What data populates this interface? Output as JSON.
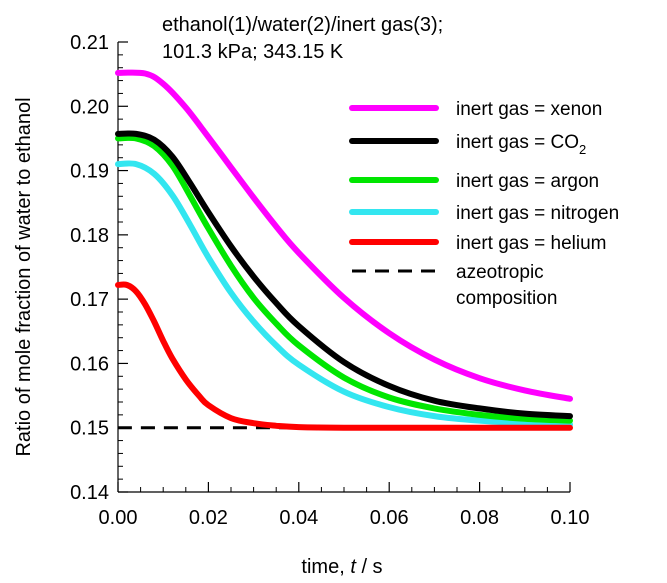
{
  "chart_data": {
    "type": "line",
    "title": "ethanol(1)/water(2)/inert gas(3);",
    "subtitle": "101.3 kPa; 343.15 K",
    "xlabel": {
      "prefix": "time, ",
      "var": "t",
      "suffix": " / s"
    },
    "ylabel": "Ratio of mole fraction of water to ethanol",
    "xlim": [
      0,
      0.1
    ],
    "ylim": [
      0.14,
      0.21
    ],
    "xticks": [
      "0.00",
      "0.02",
      "0.04",
      "0.06",
      "0.08",
      "0.10"
    ],
    "yticks": [
      "0.14",
      "0.15",
      "0.16",
      "0.17",
      "0.18",
      "0.19",
      "0.20",
      "0.21"
    ],
    "grid": false,
    "legend_position": "right",
    "series": [
      {
        "name": "inert gas = xenon",
        "color": "#ff00ff",
        "style": "solid",
        "x": [
          0,
          0.006,
          0.01,
          0.015,
          0.02,
          0.025,
          0.03,
          0.035,
          0.04,
          0.05,
          0.06,
          0.07,
          0.08,
          0.09,
          0.1
        ],
        "y": [
          0.2052,
          0.2051,
          0.2035,
          0.1998,
          0.1952,
          0.1905,
          0.1858,
          0.1813,
          0.1772,
          0.1702,
          0.1647,
          0.1606,
          0.1577,
          0.1558,
          0.1545
        ]
      },
      {
        "name": "inert gas = CO",
        "name_sub": "2",
        "color": "#000000",
        "style": "solid",
        "x": [
          0,
          0.004,
          0.008,
          0.012,
          0.016,
          0.02,
          0.025,
          0.03,
          0.035,
          0.04,
          0.05,
          0.06,
          0.07,
          0.08,
          0.09,
          0.1
        ],
        "y": [
          0.1957,
          0.1957,
          0.1948,
          0.1922,
          0.188,
          0.1835,
          0.1782,
          0.1735,
          0.1694,
          0.1658,
          0.1602,
          0.1565,
          0.1542,
          0.153,
          0.1522,
          0.1518
        ]
      },
      {
        "name": "inert gas = argon",
        "color": "#00e600",
        "style": "solid",
        "x": [
          0,
          0.004,
          0.008,
          0.012,
          0.016,
          0.02,
          0.025,
          0.03,
          0.035,
          0.04,
          0.05,
          0.06,
          0.07,
          0.08,
          0.09,
          0.1
        ],
        "y": [
          0.195,
          0.195,
          0.1938,
          0.1908,
          0.186,
          0.181,
          0.1752,
          0.1702,
          0.1662,
          0.1628,
          0.1578,
          0.1547,
          0.153,
          0.152,
          0.1514,
          0.1511
        ]
      },
      {
        "name": "inert gas = nitrogen",
        "color": "#33e6f0",
        "style": "solid",
        "x": [
          0,
          0.004,
          0.008,
          0.012,
          0.016,
          0.02,
          0.025,
          0.03,
          0.035,
          0.04,
          0.05,
          0.06,
          0.07,
          0.08,
          0.09,
          0.1
        ],
        "y": [
          0.191,
          0.191,
          0.1895,
          0.1862,
          0.1815,
          0.1765,
          0.171,
          0.1665,
          0.1628,
          0.1598,
          0.1556,
          0.1532,
          0.1518,
          0.1511,
          0.1507,
          0.1505
        ]
      },
      {
        "name": "inert gas = helium",
        "color": "#ff0000",
        "style": "solid",
        "x": [
          0,
          0.002,
          0.004,
          0.006,
          0.008,
          0.01,
          0.012,
          0.015,
          0.018,
          0.02,
          0.025,
          0.03,
          0.035,
          0.04,
          0.05,
          0.06,
          0.08,
          0.1
        ],
        "y": [
          0.1722,
          0.1722,
          0.1712,
          0.1692,
          0.1665,
          0.1635,
          0.1608,
          0.1575,
          0.1549,
          0.1535,
          0.1515,
          0.1507,
          0.1503,
          0.1501,
          0.15,
          0.15,
          0.15,
          0.15
        ]
      },
      {
        "name": "azeotropic composition",
        "name_lines": [
          "azeotropic",
          "composition"
        ],
        "color": "#000000",
        "style": "dashed",
        "x": [
          0,
          0.1
        ],
        "y": [
          0.15,
          0.15
        ]
      }
    ]
  }
}
